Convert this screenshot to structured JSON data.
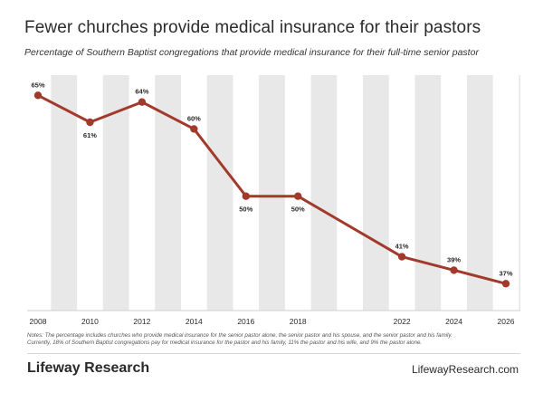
{
  "header": {
    "title": "Fewer churches provide medical insurance for their pastors",
    "subtitle": "Percentage of Southern Baptist congregations that provide medical insurance for their full-time senior pastor"
  },
  "chart_data": {
    "type": "line",
    "title": "",
    "xlabel": "",
    "ylabel": "",
    "x": [
      2008,
      2010,
      2012,
      2014,
      2016,
      2018,
      2022,
      2024,
      2026
    ],
    "values": [
      65,
      61,
      64,
      60,
      50,
      50,
      41,
      39,
      37
    ],
    "tick_labels": [
      "2008",
      "2010",
      "2012",
      "2014",
      "2016",
      "2018",
      "2022",
      "2024",
      "2026"
    ],
    "data_labels": [
      "65%",
      "61%",
      "64%",
      "60%",
      "50%",
      "50%",
      "41%",
      "39%",
      "37%"
    ],
    "label_positions": [
      "above",
      "below",
      "above",
      "above",
      "below",
      "below",
      "above",
      "above",
      "above"
    ],
    "xlim": [
      2008,
      2026
    ],
    "ylim": [
      33,
      68
    ],
    "grid": false,
    "background_bands": true,
    "legend": "none",
    "colors": {
      "line": "#a23a2b",
      "plot_background": "#e8e8e8",
      "band": "#ffffff",
      "text": "#2a2a2a"
    }
  },
  "notes": {
    "line1": "Notes: The percentage includes churches who provide medical insurance for the senior pastor alone, the senior pastor and his spouse, and the senior pastor and his family.",
    "line2": "Currently, 18% of Southern Baptist congregations pay for medical insurance for the pastor and his family, 11% the pastor and his wife, and 9% the pastor alone."
  },
  "footer": {
    "brand": "Lifeway Research",
    "url": "LifewayResearch.com"
  }
}
